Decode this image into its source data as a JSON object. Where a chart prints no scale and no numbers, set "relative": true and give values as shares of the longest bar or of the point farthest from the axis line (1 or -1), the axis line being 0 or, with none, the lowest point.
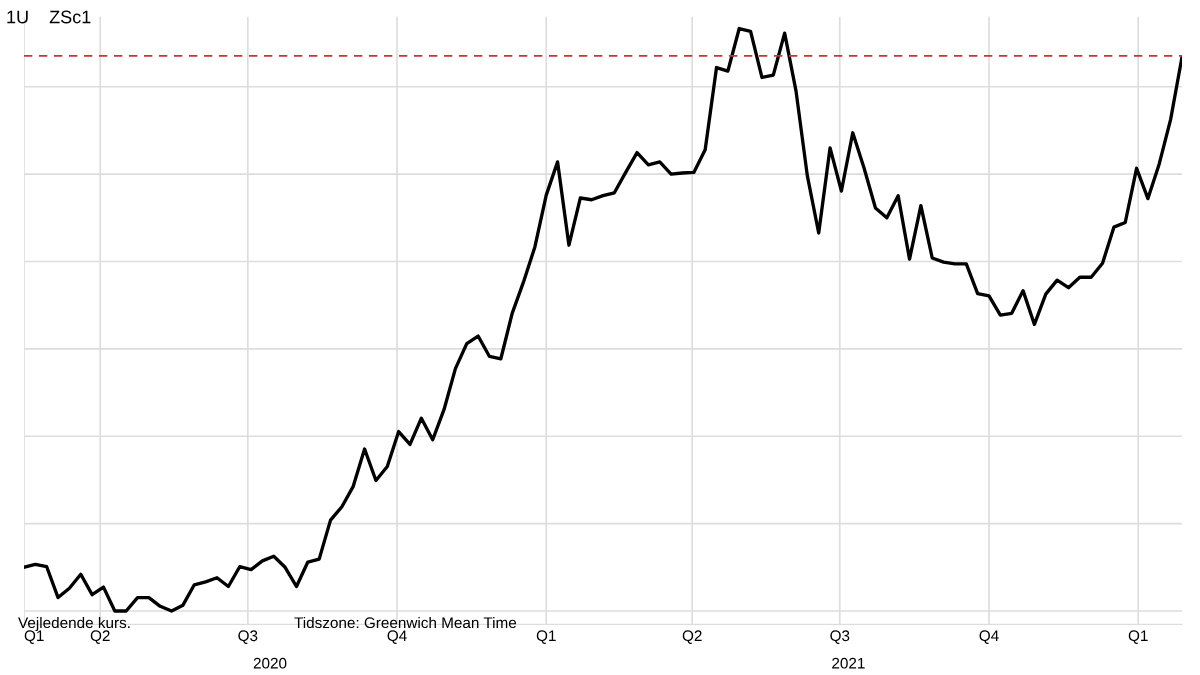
{
  "chart_data": {
    "type": "line",
    "title": "1U    ZSc1",
    "relative": true,
    "grid": true,
    "legend": false,
    "marker": "none",
    "line_style": "solid",
    "x": [
      "2020-02-14",
      "2020-02-21",
      "2020-02-28",
      "2020-03-06",
      "2020-03-13",
      "2020-03-20",
      "2020-03-27",
      "2020-04-03",
      "2020-04-10",
      "2020-04-17",
      "2020-04-24",
      "2020-05-01",
      "2020-05-08",
      "2020-05-15",
      "2020-05-22",
      "2020-05-29",
      "2020-06-05",
      "2020-06-12",
      "2020-06-19",
      "2020-06-26",
      "2020-07-03",
      "2020-07-10",
      "2020-07-17",
      "2020-07-24",
      "2020-07-31",
      "2020-08-07",
      "2020-08-14",
      "2020-08-21",
      "2020-08-28",
      "2020-09-04",
      "2020-09-11",
      "2020-09-18",
      "2020-09-25",
      "2020-10-02",
      "2020-10-09",
      "2020-10-16",
      "2020-10-23",
      "2020-10-30",
      "2020-11-06",
      "2020-11-13",
      "2020-11-20",
      "2020-11-27",
      "2020-12-04",
      "2020-12-11",
      "2020-12-18",
      "2020-12-25",
      "2021-01-01",
      "2021-01-08",
      "2021-01-15",
      "2021-01-22",
      "2021-01-29",
      "2021-02-05",
      "2021-02-12",
      "2021-02-19",
      "2021-02-26",
      "2021-03-05",
      "2021-03-12",
      "2021-03-19",
      "2021-03-26",
      "2021-04-02",
      "2021-04-09",
      "2021-04-16",
      "2021-04-23",
      "2021-04-30",
      "2021-05-07",
      "2021-05-14",
      "2021-05-21",
      "2021-05-28",
      "2021-06-04",
      "2021-06-11",
      "2021-06-18",
      "2021-06-25",
      "2021-07-02",
      "2021-07-09",
      "2021-07-16",
      "2021-07-23",
      "2021-07-30",
      "2021-08-06",
      "2021-08-13",
      "2021-08-20",
      "2021-08-27",
      "2021-09-03",
      "2021-09-10",
      "2021-09-17",
      "2021-09-24",
      "2021-10-01",
      "2021-10-08",
      "2021-10-15",
      "2021-10-22",
      "2021-10-29",
      "2021-11-05",
      "2021-11-12",
      "2021-11-19",
      "2021-11-26",
      "2021-12-03",
      "2021-12-10",
      "2021-12-17",
      "2021-12-24",
      "2021-12-31",
      "2022-01-07",
      "2022-01-14",
      "2022-01-21",
      "2022-01-28"
    ],
    "series": [
      {
        "color": "#000000",
        "values": [
          0.075,
          0.08,
          0.076,
          0.023,
          0.039,
          0.063,
          0.028,
          0.041,
          0,
          0,
          0.023,
          0.023,
          0.008,
          0,
          0.01,
          0.045,
          0.05,
          0.057,
          0.042,
          0.076,
          0.071,
          0.086,
          0.094,
          0.075,
          0.042,
          0.084,
          0.089,
          0.156,
          0.179,
          0.214,
          0.278,
          0.224,
          0.248,
          0.308,
          0.286,
          0.331,
          0.294,
          0.346,
          0.416,
          0.459,
          0.472,
          0.437,
          0.433,
          0.511,
          0.565,
          0.625,
          0.714,
          0.771,
          0.628,
          0.709,
          0.706,
          0.713,
          0.718,
          0.753,
          0.787,
          0.766,
          0.771,
          0.75,
          0.752,
          0.753,
          0.792,
          0.933,
          0.927,
          1,
          0.995,
          0.916,
          0.92,
          0.992,
          0.893,
          0.747,
          0.649,
          0.795,
          0.721,
          0.821,
          0.76,
          0.692,
          0.675,
          0.713,
          0.604,
          0.696,
          0.606,
          0.599,
          0.596,
          0.596,
          0.545,
          0.541,
          0.508,
          0.511,
          0.55,
          0.492,
          0.544,
          0.568,
          0.555,
          0.573,
          0.573,
          0.597,
          0.659,
          0.667,
          0.76,
          0.708,
          0.768,
          0.844,
          0.951
        ]
      }
    ],
    "xlim": [
      "2020-02-14",
      "2022-01-28"
    ],
    "xticks": [
      {
        "value": "2020-02-14",
        "label": "Q1"
      },
      {
        "value": "2020-04-01",
        "label": "Q2"
      },
      {
        "value": "2020-07-01",
        "label": "Q3"
      },
      {
        "value": "2020-10-01",
        "label": "Q4"
      },
      {
        "value": "2021-01-01",
        "label": "Q1"
      },
      {
        "value": "2021-04-01",
        "label": "Q2"
      },
      {
        "value": "2021-07-01",
        "label": "Q3"
      },
      {
        "value": "2021-10-01",
        "label": "Q4"
      },
      {
        "value": "2022-01-01",
        "label": "Q1"
      }
    ],
    "ref_lines": [
      {
        "axis": "y",
        "value": 0.953,
        "color": "#cc3333",
        "line_style": "dashed"
      }
    ],
    "annotations": [
      "Vejledende kurs.",
      "Tidszone: Greenwich Mean Time",
      "2020",
      "2021"
    ]
  }
}
